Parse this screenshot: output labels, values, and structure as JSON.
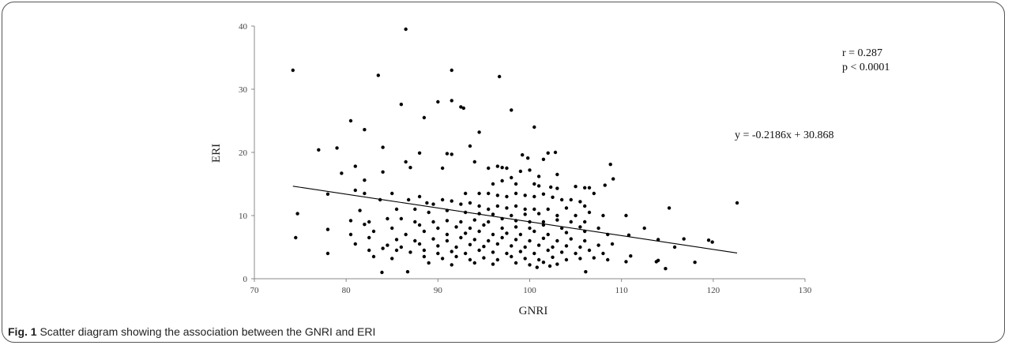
{
  "caption": {
    "label": "Fig. 1",
    "text": "Scatter diagram showing the association between the GNRI and ERI"
  },
  "chart_data": {
    "type": "scatter",
    "title": "",
    "xlabel": "GNRI",
    "ylabel": "ERI",
    "xlim": [
      70,
      130
    ],
    "ylim": [
      0,
      40
    ],
    "xticks": [
      70,
      80,
      90,
      100,
      110,
      120,
      130
    ],
    "yticks": [
      0,
      10,
      20,
      30,
      40
    ],
    "grid": false,
    "legend": "none",
    "annotations": {
      "r": "r = 0.287",
      "p": "p < 0.0001",
      "equation": "y = -0.2186x + 30.868"
    },
    "trendline": {
      "slope": -0.2186,
      "intercept": 30.868,
      "x_range": [
        74.2,
        122.6
      ]
    },
    "colors": {
      "point": "#000000",
      "line": "#000000"
    },
    "points": [
      [
        74.2,
        33.0
      ],
      [
        86.5,
        39.5
      ],
      [
        83.5,
        32.2
      ],
      [
        91.5,
        33.0
      ],
      [
        96.7,
        32.0
      ],
      [
        86.0,
        27.6
      ],
      [
        90.0,
        28.0
      ],
      [
        91.5,
        28.2
      ],
      [
        92.5,
        27.2
      ],
      [
        92.8,
        27.0
      ],
      [
        98.0,
        26.7
      ],
      [
        80.5,
        25.0
      ],
      [
        88.5,
        25.5
      ],
      [
        100.5,
        24.0
      ],
      [
        82.0,
        23.6
      ],
      [
        94.5,
        23.2
      ],
      [
        93.5,
        21.0
      ],
      [
        84.0,
        20.8
      ],
      [
        77.0,
        20.4
      ],
      [
        79.0,
        20.7
      ],
      [
        88.0,
        19.9
      ],
      [
        91.0,
        19.8
      ],
      [
        91.5,
        19.7
      ],
      [
        99.2,
        19.6
      ],
      [
        99.8,
        19.1
      ],
      [
        102.0,
        19.9
      ],
      [
        102.8,
        20.0
      ],
      [
        101.5,
        18.9
      ],
      [
        108.8,
        18.1
      ],
      [
        86.5,
        18.5
      ],
      [
        87.0,
        17.6
      ],
      [
        90.5,
        17.5
      ],
      [
        81.0,
        17.8
      ],
      [
        79.5,
        16.7
      ],
      [
        84.0,
        16.9
      ],
      [
        94.0,
        18.5
      ],
      [
        95.5,
        17.5
      ],
      [
        96.5,
        17.8
      ],
      [
        97.0,
        17.6
      ],
      [
        97.5,
        17.5
      ],
      [
        98.0,
        16.0
      ],
      [
        99.0,
        17.0
      ],
      [
        100.0,
        17.2
      ],
      [
        101.0,
        16.2
      ],
      [
        103.0,
        16.5
      ],
      [
        82.0,
        15.6
      ],
      [
        96.0,
        15.0
      ],
      [
        97.0,
        15.5
      ],
      [
        98.5,
        15.0
      ],
      [
        100.5,
        15.0
      ],
      [
        101.0,
        14.7
      ],
      [
        102.3,
        14.5
      ],
      [
        103.0,
        14.3
      ],
      [
        105.0,
        14.6
      ],
      [
        106.0,
        14.4
      ],
      [
        106.5,
        14.4
      ],
      [
        108.2,
        14.8
      ],
      [
        109.1,
        15.8
      ],
      [
        81.0,
        14.0
      ],
      [
        82.0,
        13.5
      ],
      [
        78.0,
        13.4
      ],
      [
        85.0,
        13.5
      ],
      [
        93.0,
        13.5
      ],
      [
        94.5,
        13.5
      ],
      [
        95.5,
        13.5
      ],
      [
        96.5,
        13.2
      ],
      [
        97.5,
        13.0
      ],
      [
        98.5,
        13.5
      ],
      [
        99.5,
        13.2
      ],
      [
        100.5,
        13.0
      ],
      [
        101.5,
        13.4
      ],
      [
        102.5,
        12.9
      ],
      [
        103.5,
        12.5
      ],
      [
        104.5,
        12.5
      ],
      [
        105.5,
        12.2
      ],
      [
        107.0,
        13.5
      ],
      [
        83.7,
        12.5
      ],
      [
        86.8,
        12.5
      ],
      [
        88.0,
        13.0
      ],
      [
        88.8,
        12.0
      ],
      [
        89.5,
        11.8
      ],
      [
        90.5,
        12.5
      ],
      [
        91.5,
        12.3
      ],
      [
        92.5,
        11.8
      ],
      [
        93.5,
        12.0
      ],
      [
        94.5,
        11.5
      ],
      [
        95.5,
        11.0
      ],
      [
        96.5,
        11.5
      ],
      [
        97.5,
        11.2
      ],
      [
        98.5,
        11.5
      ],
      [
        99.5,
        11.0
      ],
      [
        100.5,
        11.0
      ],
      [
        102.0,
        11.0
      ],
      [
        104.0,
        11.2
      ],
      [
        106.0,
        11.5
      ],
      [
        115.2,
        11.2
      ],
      [
        122.6,
        12.0
      ],
      [
        74.7,
        10.3
      ],
      [
        81.5,
        10.8
      ],
      [
        85.5,
        11.0
      ],
      [
        87.5,
        11.0
      ],
      [
        89.0,
        10.5
      ],
      [
        91.0,
        10.8
      ],
      [
        93.0,
        10.5
      ],
      [
        94.5,
        10.3
      ],
      [
        96.0,
        10.2
      ],
      [
        98.0,
        10.0
      ],
      [
        99.5,
        10.2
      ],
      [
        101.0,
        10.3
      ],
      [
        103.0,
        10.0
      ],
      [
        105.0,
        10.0
      ],
      [
        106.5,
        10.5
      ],
      [
        108.0,
        10.0
      ],
      [
        110.5,
        10.0
      ],
      [
        80.5,
        9.2
      ],
      [
        82.5,
        9.0
      ],
      [
        84.5,
        9.5
      ],
      [
        86.0,
        9.5
      ],
      [
        87.5,
        9.0
      ],
      [
        89.5,
        9.0
      ],
      [
        91.0,
        9.2
      ],
      [
        92.5,
        9.0
      ],
      [
        94.0,
        9.3
      ],
      [
        95.5,
        9.0
      ],
      [
        97.0,
        9.5
      ],
      [
        98.5,
        9.2
      ],
      [
        100.0,
        9.0
      ],
      [
        101.5,
        9.0
      ],
      [
        103.0,
        9.3
      ],
      [
        104.5,
        9.0
      ],
      [
        106.0,
        9.0
      ],
      [
        82.0,
        8.6
      ],
      [
        85.0,
        8.0
      ],
      [
        88.0,
        8.5
      ],
      [
        90.0,
        8.0
      ],
      [
        92.0,
        8.2
      ],
      [
        93.5,
        8.0
      ],
      [
        95.0,
        8.5
      ],
      [
        97.0,
        8.0
      ],
      [
        98.5,
        8.2
      ],
      [
        100.0,
        8.0
      ],
      [
        101.5,
        8.5
      ],
      [
        103.5,
        8.0
      ],
      [
        105.5,
        8.2
      ],
      [
        107.5,
        8.0
      ],
      [
        112.5,
        8.0
      ],
      [
        78.0,
        7.8
      ],
      [
        80.5,
        7.0
      ],
      [
        83.0,
        7.5
      ],
      [
        86.5,
        7.0
      ],
      [
        88.5,
        7.5
      ],
      [
        91.0,
        7.0
      ],
      [
        93.0,
        7.2
      ],
      [
        94.5,
        7.5
      ],
      [
        96.0,
        7.0
      ],
      [
        97.5,
        7.2
      ],
      [
        99.0,
        7.0
      ],
      [
        100.5,
        7.5
      ],
      [
        102.0,
        7.0
      ],
      [
        104.0,
        7.3
      ],
      [
        106.0,
        7.5
      ],
      [
        108.5,
        7.0
      ],
      [
        110.8,
        6.9
      ],
      [
        74.5,
        6.5
      ],
      [
        82.5,
        6.5
      ],
      [
        85.5,
        6.2
      ],
      [
        87.5,
        6.0
      ],
      [
        89.5,
        6.3
      ],
      [
        91.0,
        6.0
      ],
      [
        92.5,
        6.5
      ],
      [
        94.0,
        6.2
      ],
      [
        95.5,
        6.0
      ],
      [
        97.0,
        6.5
      ],
      [
        98.5,
        6.2
      ],
      [
        100.0,
        6.0
      ],
      [
        101.5,
        6.4
      ],
      [
        103.0,
        6.0
      ],
      [
        104.5,
        6.3
      ],
      [
        106.0,
        6.0
      ],
      [
        114.0,
        6.2
      ],
      [
        116.8,
        6.3
      ],
      [
        119.5,
        6.1
      ],
      [
        119.9,
        5.8
      ],
      [
        81.0,
        5.5
      ],
      [
        84.5,
        5.3
      ],
      [
        86.0,
        5.0
      ],
      [
        88.0,
        5.5
      ],
      [
        90.0,
        5.2
      ],
      [
        92.0,
        5.0
      ],
      [
        93.5,
        5.4
      ],
      [
        95.0,
        5.1
      ],
      [
        96.5,
        5.5
      ],
      [
        98.0,
        5.2
      ],
      [
        99.5,
        5.0
      ],
      [
        101.0,
        5.3
      ],
      [
        102.5,
        5.0
      ],
      [
        104.0,
        5.2
      ],
      [
        105.5,
        5.0
      ],
      [
        107.5,
        5.3
      ],
      [
        109.0,
        5.5
      ],
      [
        115.8,
        5.0
      ],
      [
        78.0,
        4.0
      ],
      [
        82.5,
        4.5
      ],
      [
        84.0,
        4.8
      ],
      [
        85.5,
        4.5
      ],
      [
        87.0,
        4.2
      ],
      [
        88.5,
        4.5
      ],
      [
        90.0,
        4.0
      ],
      [
        91.5,
        4.3
      ],
      [
        93.0,
        4.0
      ],
      [
        94.5,
        4.5
      ],
      [
        96.0,
        4.2
      ],
      [
        97.5,
        4.0
      ],
      [
        99.0,
        4.3
      ],
      [
        100.5,
        4.0
      ],
      [
        102.0,
        4.5
      ],
      [
        103.5,
        4.2
      ],
      [
        105.0,
        4.0
      ],
      [
        106.5,
        4.5
      ],
      [
        108.0,
        4.0
      ],
      [
        111.0,
        3.6
      ],
      [
        83.0,
        3.5
      ],
      [
        85.0,
        3.2
      ],
      [
        88.5,
        3.5
      ],
      [
        90.5,
        3.2
      ],
      [
        92.0,
        3.5
      ],
      [
        93.5,
        3.0
      ],
      [
        95.0,
        3.3
      ],
      [
        96.5,
        3.0
      ],
      [
        98.0,
        3.5
      ],
      [
        99.5,
        3.2
      ],
      [
        101.0,
        3.0
      ],
      [
        102.5,
        3.4
      ],
      [
        104.0,
        3.0
      ],
      [
        105.5,
        3.2
      ],
      [
        107.0,
        3.3
      ],
      [
        108.5,
        3.0
      ],
      [
        114.0,
        2.9
      ],
      [
        113.8,
        2.7
      ],
      [
        118.0,
        2.6
      ],
      [
        89.0,
        2.5
      ],
      [
        91.5,
        2.2
      ],
      [
        94.0,
        2.5
      ],
      [
        96.0,
        2.3
      ],
      [
        98.5,
        2.5
      ],
      [
        100.0,
        2.2
      ],
      [
        101.5,
        2.6
      ],
      [
        103.0,
        2.3
      ],
      [
        110.5,
        2.7
      ],
      [
        114.8,
        1.6
      ],
      [
        83.9,
        1.0
      ],
      [
        86.7,
        1.1
      ],
      [
        106.1,
        1.1
      ],
      [
        100.8,
        1.8
      ],
      [
        102.2,
        2.0
      ]
    ]
  }
}
